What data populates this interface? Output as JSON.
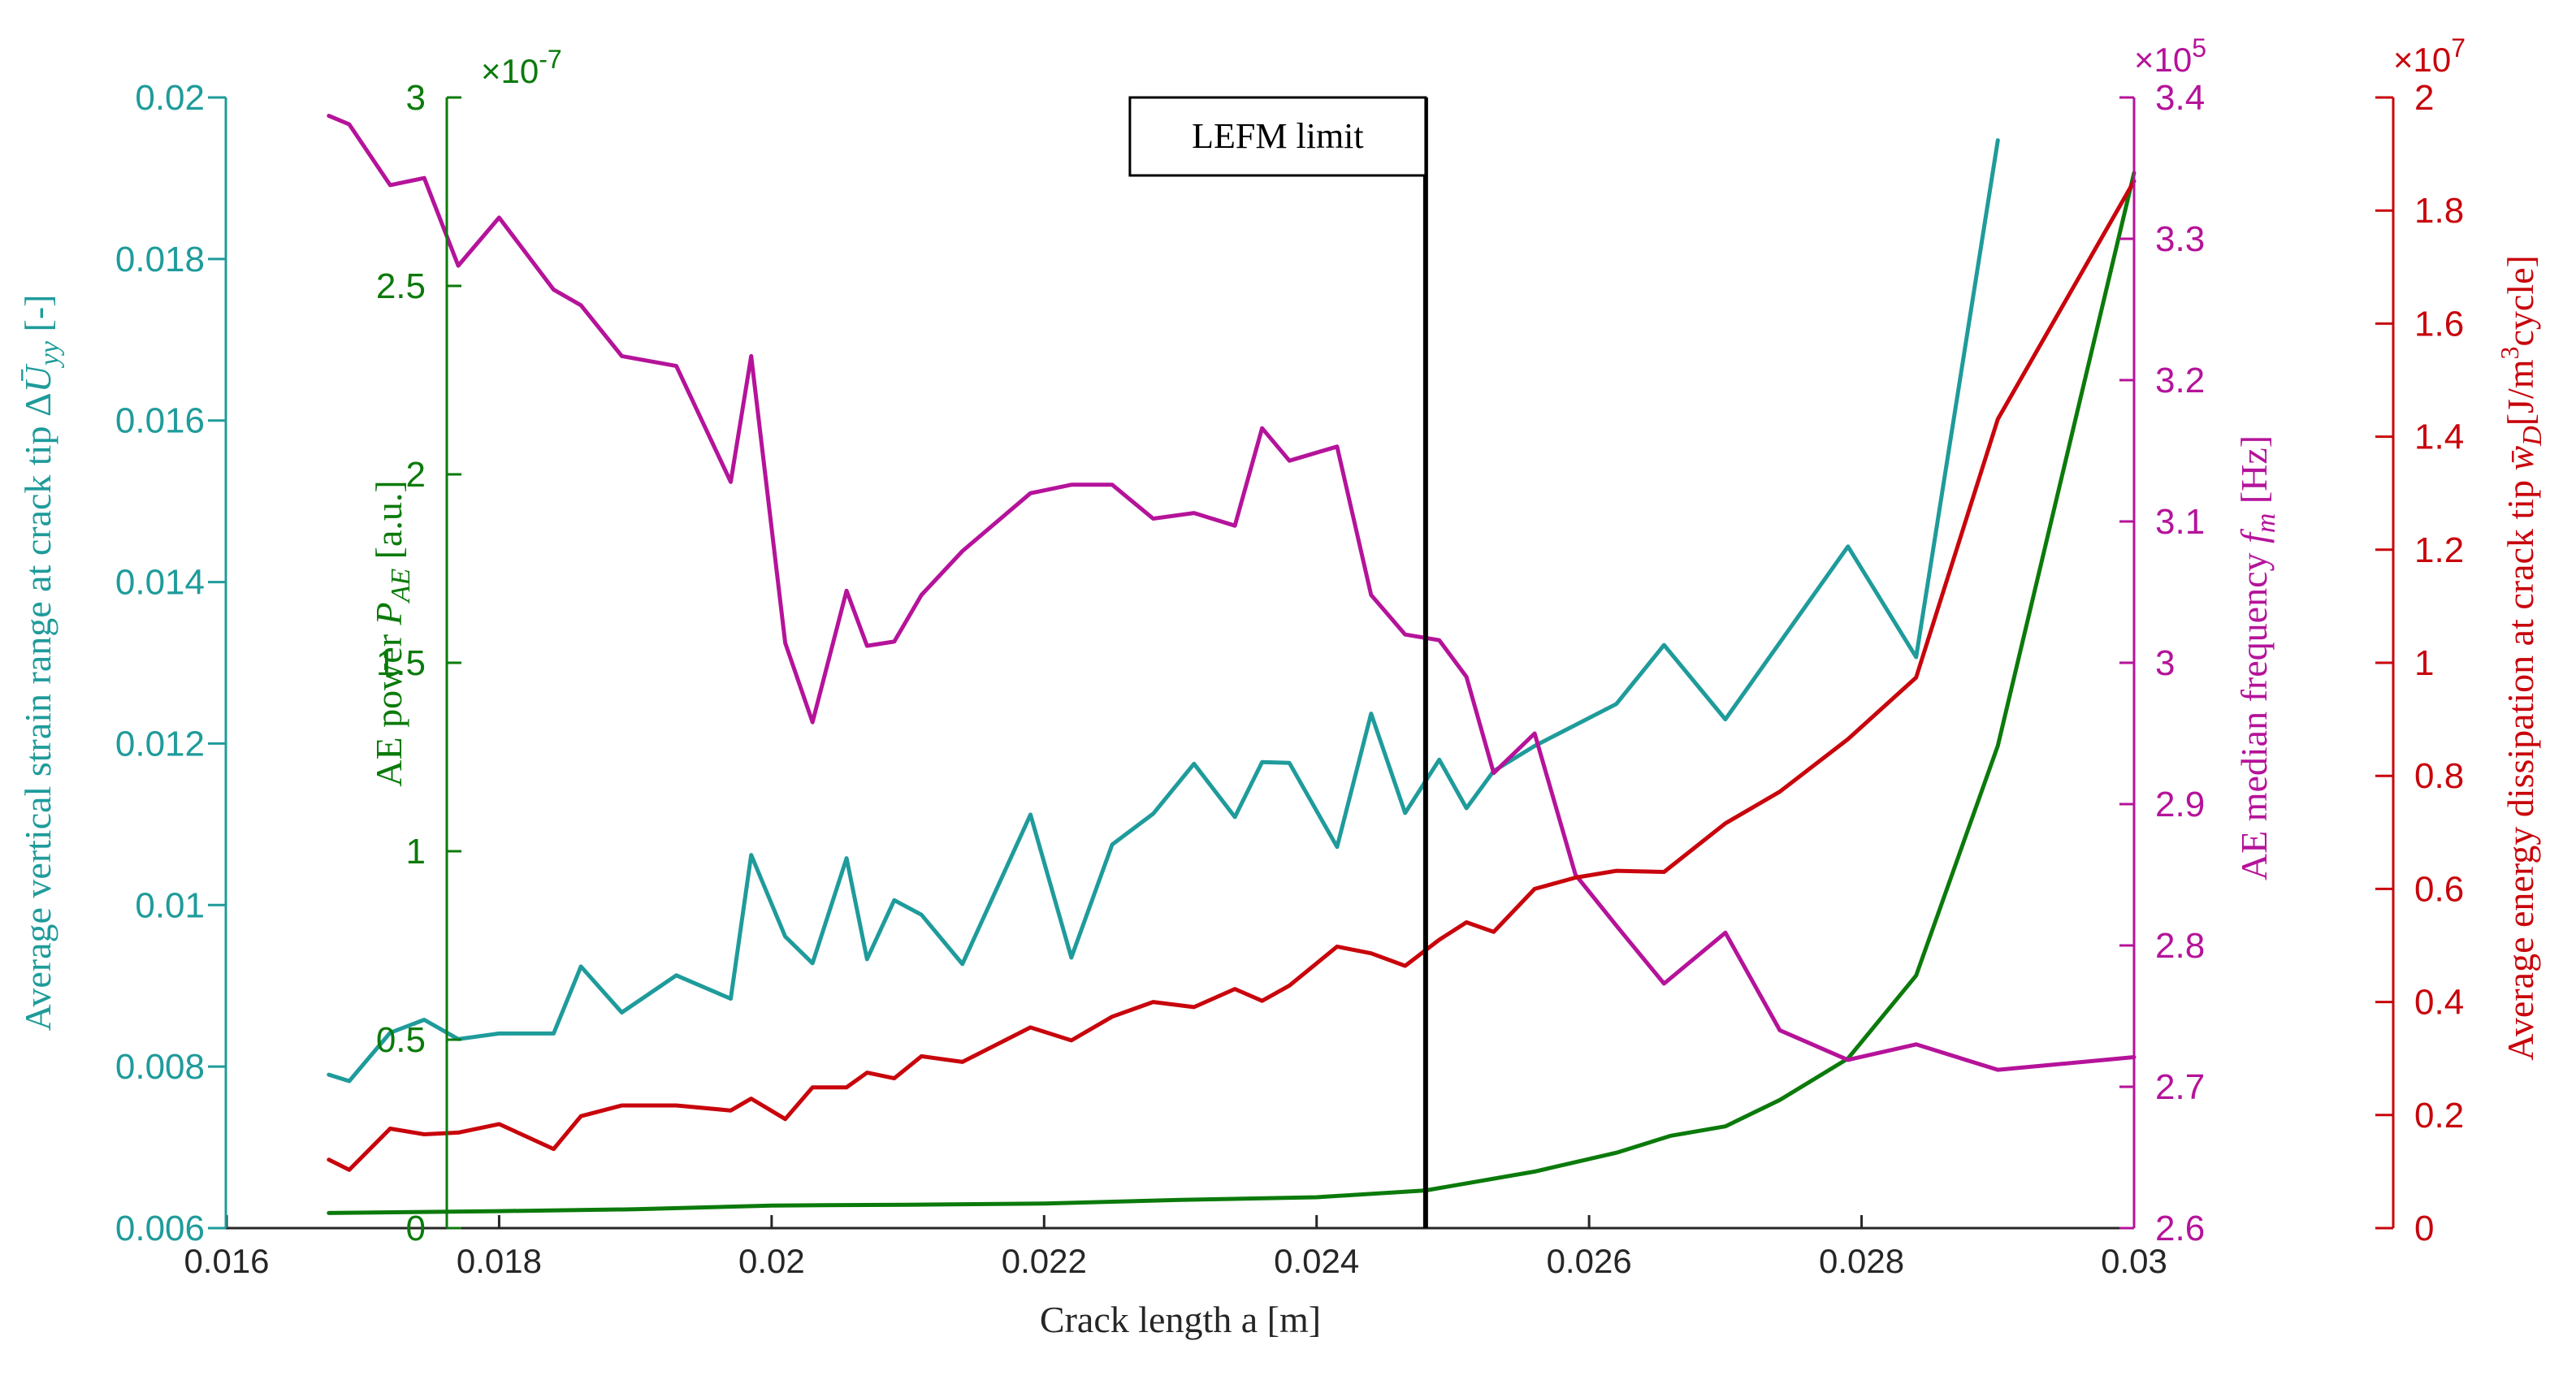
{
  "chart_data": {
    "type": "line",
    "xlabel": "Crack length a [m]",
    "xlim": [
      0.016,
      0.03
    ],
    "x_ticks": [
      "0.016",
      "0.018",
      "0.02",
      "0.022",
      "0.024",
      "0.026",
      "0.028",
      "0.03"
    ],
    "annotation": {
      "label": "LEFM limit",
      "x": 0.0248
    },
    "axes": {
      "strain": {
        "label": "Average vertical strain range at crack tip ΔŪyy [-]",
        "ylim": [
          0.006,
          0.02
        ],
        "ticks": [
          "0.006",
          "0.008",
          "0.01",
          "0.012",
          "0.014",
          "0.016",
          "0.018",
          "0.02"
        ],
        "color": "#1f9b9b"
      },
      "power": {
        "label": "AE power PAE [a.u.]",
        "ylim": [
          0,
          3e-07
        ],
        "ticks": [
          "0",
          "0.5",
          "1",
          "1.5",
          "2",
          "2.5",
          "3"
        ],
        "exponent": "×10-7",
        "color": "#0b7a0b"
      },
      "freq": {
        "label": "AE median frequency fm [Hz]",
        "ylim": [
          2.6,
          3.4
        ],
        "ticks": [
          "2.6",
          "2.7",
          "2.8",
          "2.9",
          "3",
          "3.1",
          "3.2",
          "3.3",
          "3.4"
        ],
        "exponent": "×105",
        "color": "#b5139a"
      },
      "energy": {
        "label": "Average energy dissipation at crack tip w̄D [J/m3cycle]",
        "ylim": [
          0,
          2
        ],
        "ticks": [
          "0",
          "0.2",
          "0.4",
          "0.6",
          "0.8",
          "1",
          "1.2",
          "1.4",
          "1.6",
          "1.8",
          "2"
        ],
        "exponent": "×107",
        "color": "#c8050c"
      }
    },
    "series": [
      {
        "axis": "strain",
        "color": "#1f9b9b",
        "x": [
          0.01675,
          0.0169,
          0.0172,
          0.01745,
          0.0177,
          0.018,
          0.0184,
          0.0186,
          0.0189,
          0.0193,
          0.0197,
          0.01985,
          0.0201,
          0.0203,
          0.02055,
          0.0207,
          0.0209,
          0.0211,
          0.0214,
          0.0219,
          0.0222,
          0.0225,
          0.0228,
          0.0231,
          0.0234,
          0.0236,
          0.0238,
          0.02415,
          0.0244,
          0.02465,
          0.0249,
          0.0251,
          0.0253,
          0.0256,
          0.0262,
          0.02655,
          0.027,
          0.0279,
          0.0284,
          0.029
        ],
        "values": [
          0.0079,
          0.00782,
          0.00842,
          0.00858,
          0.00834,
          0.00841,
          0.00841,
          0.00924,
          0.00867,
          0.00913,
          0.00884,
          0.01062,
          0.00961,
          0.00928,
          0.01058,
          0.00933,
          0.01006,
          0.00988,
          0.00927,
          0.01112,
          0.00935,
          0.01075,
          0.01113,
          0.01175,
          0.01109,
          0.01177,
          0.01176,
          0.01072,
          0.01237,
          0.01114,
          0.0118,
          0.0112,
          0.01166,
          0.01197,
          0.01249,
          0.01322,
          0.0123,
          0.01444,
          0.01307,
          0.01947
        ]
      },
      {
        "axis": "power",
        "color": "#0b7a0b",
        "x": [
          0.01675,
          0.018,
          0.019,
          0.02,
          0.021,
          0.022,
          0.023,
          0.024,
          0.0248,
          0.0256,
          0.0262,
          0.0266,
          0.027,
          0.0274,
          0.0279,
          0.0284,
          0.029,
          0.03
        ],
        "values": [
          4e-09,
          4.5e-09,
          5e-09,
          6e-09,
          6.2e-09,
          6.5e-09,
          7.5e-09,
          8.2e-09,
          1e-08,
          1.5e-08,
          2e-08,
          2.45e-08,
          2.7e-08,
          3.4e-08,
          4.5e-08,
          6.7e-08,
          1.28e-07,
          2.8e-07
        ]
      },
      {
        "axis": "freq",
        "color": "#b5139a",
        "x": [
          0.01675,
          0.0169,
          0.0172,
          0.01745,
          0.0177,
          0.018,
          0.0184,
          0.0186,
          0.0189,
          0.0193,
          0.0197,
          0.01985,
          0.0201,
          0.0203,
          0.02055,
          0.0207,
          0.0209,
          0.0211,
          0.0214,
          0.0219,
          0.0222,
          0.0225,
          0.0228,
          0.0231,
          0.0234,
          0.0236,
          0.0238,
          0.02415,
          0.0244,
          0.02465,
          0.0249,
          0.0251,
          0.0253,
          0.0256,
          0.0259,
          0.0262,
          0.02655,
          0.027,
          0.0274,
          0.0279,
          0.0284,
          0.029,
          0.03
        ],
        "values": [
          3.387,
          3.381,
          3.338,
          3.343,
          3.281,
          3.315,
          3.264,
          3.253,
          3.217,
          3.21,
          3.128,
          3.217,
          3.014,
          2.958,
          3.051,
          3.012,
          3.015,
          3.048,
          3.079,
          3.12,
          3.126,
          3.126,
          3.102,
          3.106,
          3.097,
          3.166,
          3.143,
          3.153,
          3.048,
          3.02,
          3.016,
          2.99,
          2.922,
          2.95,
          2.85,
          2.814,
          2.773,
          2.809,
          2.74,
          2.719,
          2.73,
          2.712,
          2.721
        ]
      },
      {
        "axis": "energy",
        "color": "#c8050c",
        "x": [
          0.01675,
          0.0169,
          0.0172,
          0.01745,
          0.0177,
          0.018,
          0.0184,
          0.0186,
          0.0189,
          0.0193,
          0.0197,
          0.01985,
          0.0201,
          0.0203,
          0.02055,
          0.0207,
          0.0209,
          0.0211,
          0.0214,
          0.0219,
          0.0222,
          0.0225,
          0.0228,
          0.0231,
          0.0234,
          0.0236,
          0.0238,
          0.02415,
          0.0244,
          0.02465,
          0.0249,
          0.0251,
          0.0253,
          0.0256,
          0.0259,
          0.0262,
          0.02655,
          0.027,
          0.0274,
          0.0279,
          0.0284,
          0.029,
          0.03
        ],
        "values": [
          0.121,
          0.103,
          0.176,
          0.166,
          0.169,
          0.184,
          0.14,
          0.198,
          0.217,
          0.217,
          0.208,
          0.229,
          0.193,
          0.249,
          0.249,
          0.275,
          0.265,
          0.304,
          0.294,
          0.355,
          0.332,
          0.374,
          0.4,
          0.391,
          0.423,
          0.402,
          0.429,
          0.498,
          0.486,
          0.464,
          0.51,
          0.541,
          0.524,
          0.6,
          0.62,
          0.632,
          0.63,
          0.716,
          0.772,
          0.865,
          0.974,
          1.431,
          1.852
        ]
      }
    ]
  }
}
